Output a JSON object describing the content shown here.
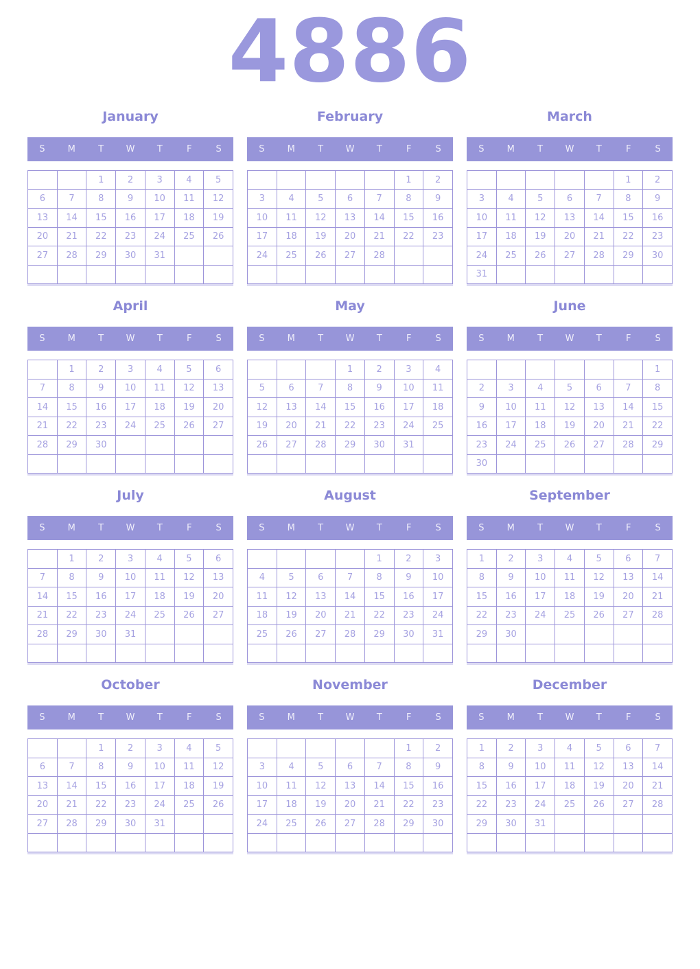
{
  "year": "4886",
  "weekday_letters": [
    "S",
    "M",
    "T",
    "W",
    "T",
    "F",
    "S"
  ],
  "colors": {
    "year_text": "#9a98dd",
    "month_title": "#8b89d6",
    "weekday_bar_bg": "#9795d9",
    "weekday_bar_text": "#efeefa",
    "cell_border": "#9d95da",
    "day_number": "#a6a2e1",
    "page_bg": "#ffffff"
  },
  "months": [
    {
      "label": "January",
      "weeks": [
        [
          "",
          "",
          "1",
          "2",
          "3",
          "4",
          "5"
        ],
        [
          "6",
          "7",
          "8",
          "9",
          "10",
          "11",
          "12"
        ],
        [
          "13",
          "14",
          "15",
          "16",
          "17",
          "18",
          "19"
        ],
        [
          "20",
          "21",
          "22",
          "23",
          "24",
          "25",
          "26"
        ],
        [
          "27",
          "28",
          "29",
          "30",
          "31",
          "",
          ""
        ],
        [
          "",
          "",
          "",
          "",
          "",
          "",
          ""
        ]
      ]
    },
    {
      "label": "February",
      "weeks": [
        [
          "",
          "",
          "",
          "",
          "",
          "1",
          "2"
        ],
        [
          "3",
          "4",
          "5",
          "6",
          "7",
          "8",
          "9"
        ],
        [
          "10",
          "11",
          "12",
          "13",
          "14",
          "15",
          "16"
        ],
        [
          "17",
          "18",
          "19",
          "20",
          "21",
          "22",
          "23"
        ],
        [
          "24",
          "25",
          "26",
          "27",
          "28",
          "",
          ""
        ],
        [
          "",
          "",
          "",
          "",
          "",
          "",
          ""
        ]
      ]
    },
    {
      "label": "March",
      "weeks": [
        [
          "",
          "",
          "",
          "",
          "",
          "1",
          "2"
        ],
        [
          "3",
          "4",
          "5",
          "6",
          "7",
          "8",
          "9"
        ],
        [
          "10",
          "11",
          "12",
          "13",
          "14",
          "15",
          "16"
        ],
        [
          "17",
          "18",
          "19",
          "20",
          "21",
          "22",
          "23"
        ],
        [
          "24",
          "25",
          "26",
          "27",
          "28",
          "29",
          "30"
        ],
        [
          "31",
          "",
          "",
          "",
          "",
          "",
          ""
        ]
      ]
    },
    {
      "label": "April",
      "weeks": [
        [
          "",
          "1",
          "2",
          "3",
          "4",
          "5",
          "6"
        ],
        [
          "7",
          "8",
          "9",
          "10",
          "11",
          "12",
          "13"
        ],
        [
          "14",
          "15",
          "16",
          "17",
          "18",
          "19",
          "20"
        ],
        [
          "21",
          "22",
          "23",
          "24",
          "25",
          "26",
          "27"
        ],
        [
          "28",
          "29",
          "30",
          "",
          "",
          "",
          ""
        ],
        [
          "",
          "",
          "",
          "",
          "",
          "",
          ""
        ]
      ]
    },
    {
      "label": "May",
      "weeks": [
        [
          "",
          "",
          "",
          "1",
          "2",
          "3",
          "4"
        ],
        [
          "5",
          "6",
          "7",
          "8",
          "9",
          "10",
          "11"
        ],
        [
          "12",
          "13",
          "14",
          "15",
          "16",
          "17",
          "18"
        ],
        [
          "19",
          "20",
          "21",
          "22",
          "23",
          "24",
          "25"
        ],
        [
          "26",
          "27",
          "28",
          "29",
          "30",
          "31",
          ""
        ],
        [
          "",
          "",
          "",
          "",
          "",
          "",
          ""
        ]
      ]
    },
    {
      "label": "June",
      "weeks": [
        [
          "",
          "",
          "",
          "",
          "",
          "",
          "1"
        ],
        [
          "2",
          "3",
          "4",
          "5",
          "6",
          "7",
          "8"
        ],
        [
          "9",
          "10",
          "11",
          "12",
          "13",
          "14",
          "15"
        ],
        [
          "16",
          "17",
          "18",
          "19",
          "20",
          "21",
          "22"
        ],
        [
          "23",
          "24",
          "25",
          "26",
          "27",
          "28",
          "29"
        ],
        [
          "30",
          "",
          "",
          "",
          "",
          "",
          ""
        ]
      ]
    },
    {
      "label": "July",
      "weeks": [
        [
          "",
          "1",
          "2",
          "3",
          "4",
          "5",
          "6"
        ],
        [
          "7",
          "8",
          "9",
          "10",
          "11",
          "12",
          "13"
        ],
        [
          "14",
          "15",
          "16",
          "17",
          "18",
          "19",
          "20"
        ],
        [
          "21",
          "22",
          "23",
          "24",
          "25",
          "26",
          "27"
        ],
        [
          "28",
          "29",
          "30",
          "31",
          "",
          "",
          ""
        ],
        [
          "",
          "",
          "",
          "",
          "",
          "",
          ""
        ]
      ]
    },
    {
      "label": "August",
      "weeks": [
        [
          "",
          "",
          "",
          "",
          "1",
          "2",
          "3"
        ],
        [
          "4",
          "5",
          "6",
          "7",
          "8",
          "9",
          "10"
        ],
        [
          "11",
          "12",
          "13",
          "14",
          "15",
          "16",
          "17"
        ],
        [
          "18",
          "19",
          "20",
          "21",
          "22",
          "23",
          "24"
        ],
        [
          "25",
          "26",
          "27",
          "28",
          "29",
          "30",
          "31"
        ],
        [
          "",
          "",
          "",
          "",
          "",
          "",
          ""
        ]
      ]
    },
    {
      "label": "September",
      "weeks": [
        [
          "1",
          "2",
          "3",
          "4",
          "5",
          "6",
          "7"
        ],
        [
          "8",
          "9",
          "10",
          "11",
          "12",
          "13",
          "14"
        ],
        [
          "15",
          "16",
          "17",
          "18",
          "19",
          "20",
          "21"
        ],
        [
          "22",
          "23",
          "24",
          "25",
          "26",
          "27",
          "28"
        ],
        [
          "29",
          "30",
          "",
          "",
          "",
          "",
          ""
        ],
        [
          "",
          "",
          "",
          "",
          "",
          "",
          ""
        ]
      ]
    },
    {
      "label": "October",
      "weeks": [
        [
          "",
          "",
          "1",
          "2",
          "3",
          "4",
          "5"
        ],
        [
          "6",
          "7",
          "8",
          "9",
          "10",
          "11",
          "12"
        ],
        [
          "13",
          "14",
          "15",
          "16",
          "17",
          "18",
          "19"
        ],
        [
          "20",
          "21",
          "22",
          "23",
          "24",
          "25",
          "26"
        ],
        [
          "27",
          "28",
          "29",
          "30",
          "31",
          "",
          ""
        ],
        [
          "",
          "",
          "",
          "",
          "",
          "",
          ""
        ]
      ]
    },
    {
      "label": "November",
      "weeks": [
        [
          "",
          "",
          "",
          "",
          "",
          "1",
          "2"
        ],
        [
          "3",
          "4",
          "5",
          "6",
          "7",
          "8",
          "9"
        ],
        [
          "10",
          "11",
          "12",
          "13",
          "14",
          "15",
          "16"
        ],
        [
          "17",
          "18",
          "19",
          "20",
          "21",
          "22",
          "23"
        ],
        [
          "24",
          "25",
          "26",
          "27",
          "28",
          "29",
          "30"
        ],
        [
          "",
          "",
          "",
          "",
          "",
          "",
          ""
        ]
      ]
    },
    {
      "label": "December",
      "weeks": [
        [
          "1",
          "2",
          "3",
          "4",
          "5",
          "6",
          "7"
        ],
        [
          "8",
          "9",
          "10",
          "11",
          "12",
          "13",
          "14"
        ],
        [
          "15",
          "16",
          "17",
          "18",
          "19",
          "20",
          "21"
        ],
        [
          "22",
          "23",
          "24",
          "25",
          "26",
          "27",
          "28"
        ],
        [
          "29",
          "30",
          "31",
          "",
          "",
          "",
          ""
        ],
        [
          "",
          "",
          "",
          "",
          "",
          "",
          ""
        ]
      ]
    }
  ]
}
